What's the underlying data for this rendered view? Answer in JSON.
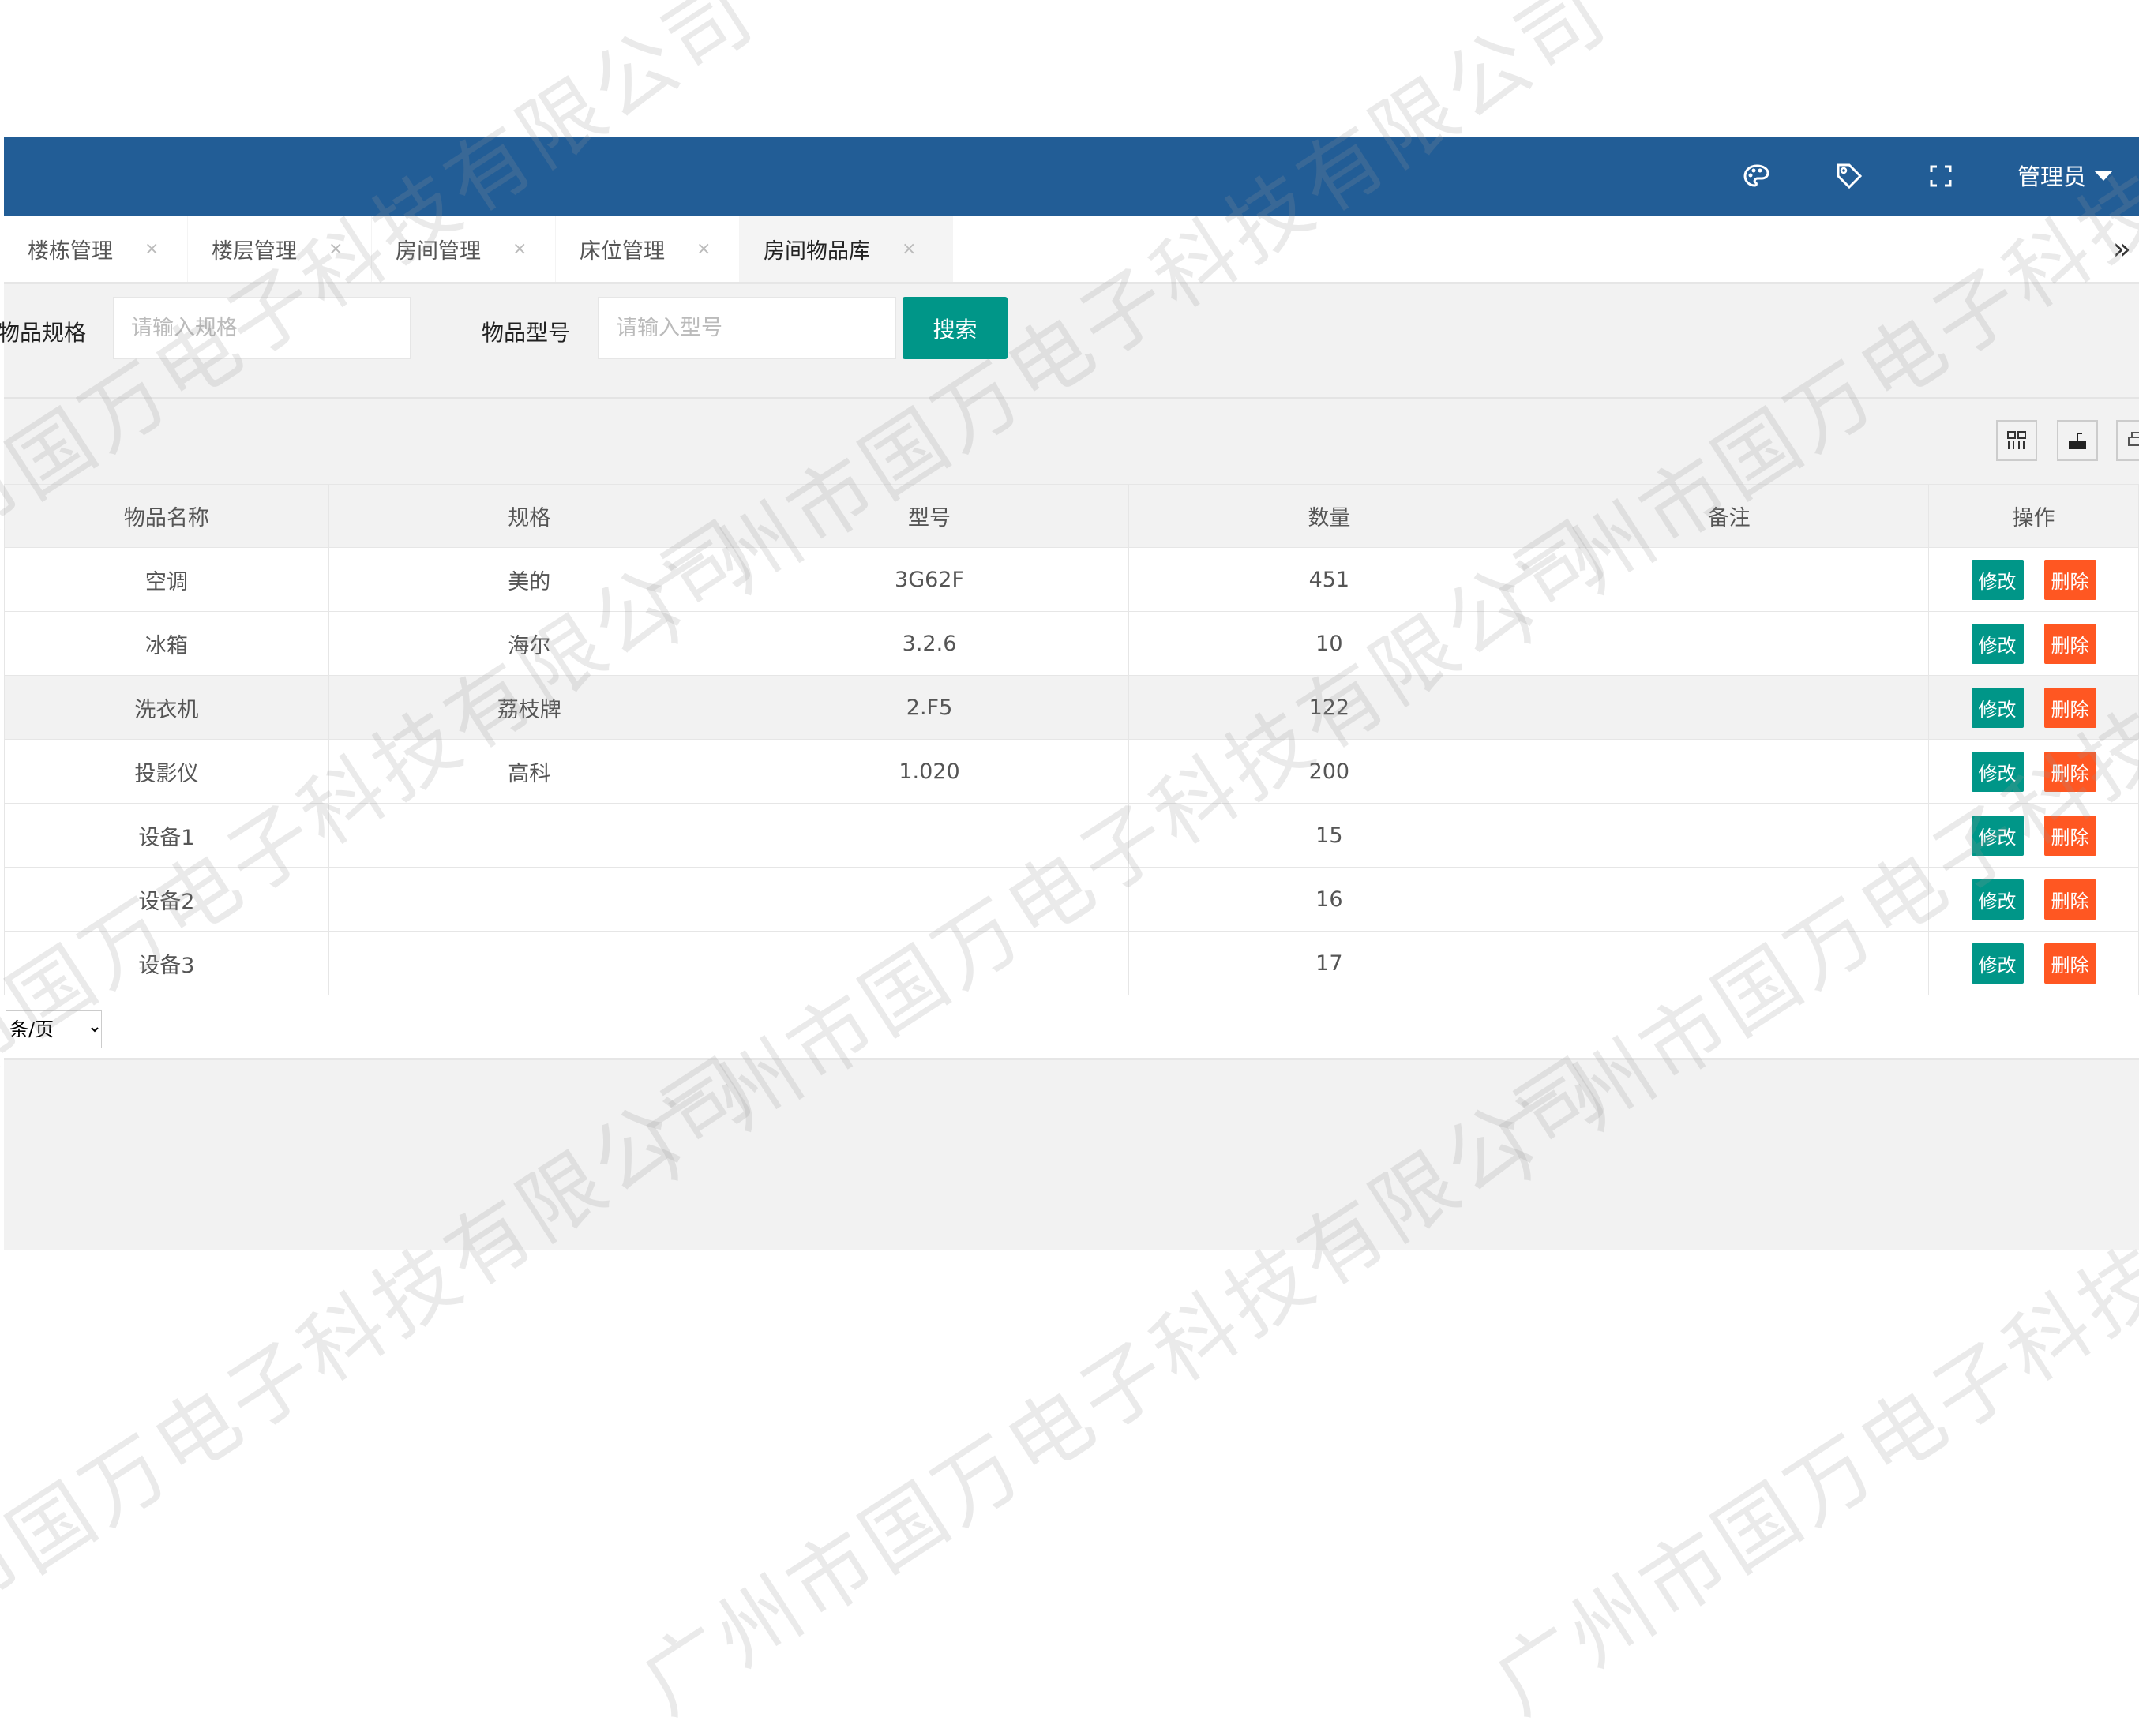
{
  "header": {
    "user": "管理员",
    "icons": [
      "palette-icon",
      "tag-icon",
      "fullscreen-icon"
    ]
  },
  "tabs": [
    {
      "label": "楼栋管理"
    },
    {
      "label": "楼层管理"
    },
    {
      "label": "房间管理"
    },
    {
      "label": "床位管理"
    },
    {
      "label": "房间物品库",
      "active": true
    }
  ],
  "tab_close": "×",
  "tab_more": "»",
  "search": {
    "spec_label": "物品规格",
    "spec_placeholder": "请输入规格",
    "model_label": "物品型号",
    "model_placeholder": "请输入型号",
    "button": "搜索"
  },
  "toolbar": [
    "columns-icon",
    "export-icon",
    "print-icon"
  ],
  "table": {
    "headers": [
      "物品名称",
      "规格",
      "型号",
      "数量",
      "备注",
      "操作"
    ],
    "rows": [
      [
        "空调",
        "美的",
        "3G62F",
        "451",
        ""
      ],
      [
        "冰箱",
        "海尔",
        "3.2.6",
        "10",
        ""
      ],
      [
        "洗衣机",
        "荔枝牌",
        "2.F5",
        "122",
        ""
      ],
      [
        "投影仪",
        "高科",
        "1.020",
        "200",
        ""
      ],
      [
        "设备1",
        "",
        "",
        "15",
        ""
      ],
      [
        "设备2",
        "",
        "",
        "16",
        ""
      ],
      [
        "设备3",
        "",
        "",
        "17",
        ""
      ]
    ],
    "edit_label": "修改",
    "delete_label": "删除"
  },
  "pager": {
    "page_size": "条/页"
  },
  "watermark": "广州市国万电子科技有限公司",
  "colors": {
    "header": "#225d96",
    "primary": "#009688",
    "danger": "#ff5722"
  }
}
